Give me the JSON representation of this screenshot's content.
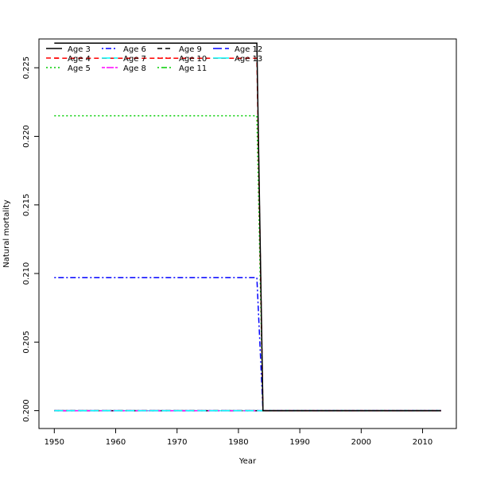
{
  "chart_data": {
    "type": "line",
    "title": "",
    "xlabel": "Year",
    "ylabel": "Natural mortality",
    "xlim": [
      1947.5,
      2015.5
    ],
    "ylim": [
      0.1987,
      0.2271
    ],
    "x_ticks": [
      1950,
      1960,
      1970,
      1980,
      1990,
      2000,
      2010
    ],
    "y_ticks": [
      0.2,
      0.205,
      0.21,
      0.215,
      0.22,
      0.225
    ],
    "y_tick_labels": [
      "0.200",
      "0.205",
      "0.210",
      "0.215",
      "0.220",
      "0.225"
    ],
    "grid": false,
    "legend_position": "top-left",
    "legend_columns": 4,
    "series": [
      {
        "name": "Age 3",
        "color": "#000000",
        "dash": "solid",
        "x": [
          1950,
          1983,
          1984,
          2013
        ],
        "y": [
          0.2268,
          0.2268,
          0.2,
          0.2
        ]
      },
      {
        "name": "Age 4",
        "color": "#ff0000",
        "dash": "dashed",
        "x": [
          1950,
          1983,
          1984,
          2013
        ],
        "y": [
          0.2257,
          0.2257,
          0.2,
          0.2
        ]
      },
      {
        "name": "Age 5",
        "color": "#00cd00",
        "dash": "dotted",
        "x": [
          1950,
          1983,
          1984,
          2013
        ],
        "y": [
          0.2215,
          0.2215,
          0.2,
          0.2
        ]
      },
      {
        "name": "Age 6",
        "color": "#0000ff",
        "dash": "dotdash",
        "x": [
          1950,
          1983,
          1984,
          2013
        ],
        "y": [
          0.2097,
          0.2097,
          0.2,
          0.2
        ]
      },
      {
        "name": "Age 7",
        "color": "#00ffff",
        "dash": "longdash",
        "x": [
          1950,
          2013
        ],
        "y": [
          0.2,
          0.2
        ]
      },
      {
        "name": "Age 8",
        "color": "#ff00ff",
        "dash": "twodash",
        "x": [
          1950,
          2013
        ],
        "y": [
          0.2,
          0.2
        ]
      },
      {
        "name": "Age 9",
        "color": "#000000",
        "dash": "dashed",
        "x": [
          1950,
          2013
        ],
        "y": [
          0.2,
          0.2
        ]
      },
      {
        "name": "Age 10",
        "color": "#ff0000",
        "dash": "dotted",
        "x": [
          1950,
          2013
        ],
        "y": [
          0.2,
          0.2
        ]
      },
      {
        "name": "Age 11",
        "color": "#00cd00",
        "dash": "dotdash",
        "x": [
          1950,
          2013
        ],
        "y": [
          0.2,
          0.2
        ]
      },
      {
        "name": "Age 12",
        "color": "#0000ff",
        "dash": "longdash",
        "x": [
          1950,
          2013
        ],
        "y": [
          0.2,
          0.2
        ]
      },
      {
        "name": "Age 13",
        "color": "#00ffff",
        "dash": "solid",
        "x": [
          1950,
          2013
        ],
        "y": [
          0.2,
          0.2
        ]
      }
    ]
  }
}
